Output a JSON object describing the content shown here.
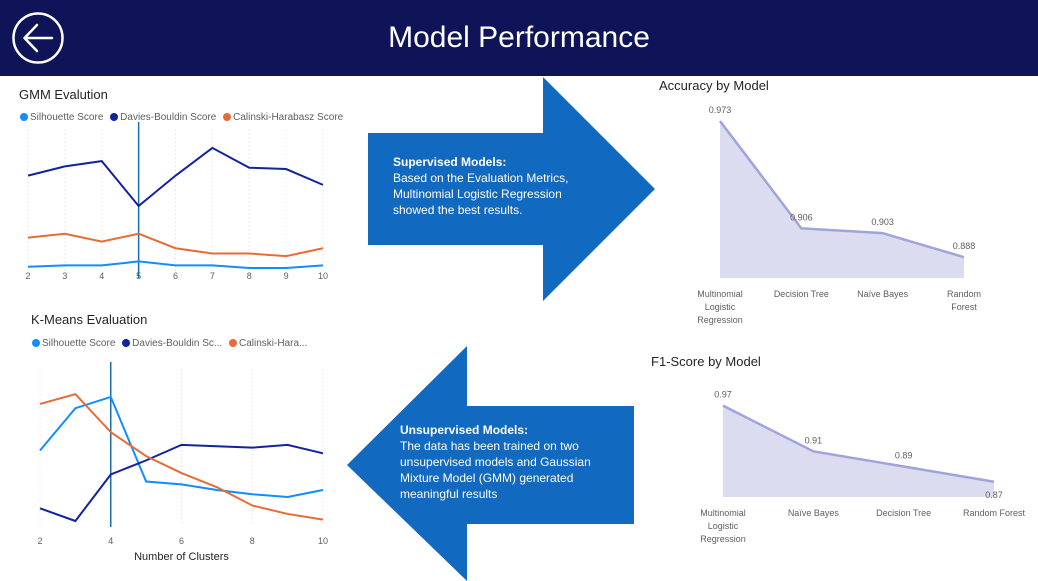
{
  "header": {
    "title": "Model Performance",
    "back_icon": "back-arrow-icon",
    "background": "#0f1458"
  },
  "colors": {
    "silhouette": "#118dff",
    "davies": "#12239e",
    "calinski": "#e66c37",
    "arrow": "#1169c0",
    "area": "#a0a4dc",
    "area_fill": "#dcdcf0"
  },
  "gmm": {
    "title": "GMM Evalution",
    "legend": [
      "Silhouette Score",
      "Davies-Bouldin Score",
      "Calinski-Harabasz Score"
    ]
  },
  "kmeans": {
    "title": "K-Means Evaluation",
    "legend": [
      "Silhouette Score",
      "Davies-Bouldin Sc...",
      "Calinski-Hara..."
    ],
    "xlabel": "Number of Clusters"
  },
  "supervised": {
    "heading": "Supervised Models:",
    "body": "Based on the Evaluation Metrics, Multinomial Logistic Regression showed the best results."
  },
  "unsupervised": {
    "heading": "Unsupervised Models:",
    "body": "The data has been trained on two unsupervised models and Gaussian Mixture Model (GMM) generated meaningful results"
  },
  "accuracy": {
    "title": "Accuracy by Model"
  },
  "f1": {
    "title": "F1-Score by Model"
  },
  "chart_data": [
    {
      "type": "line",
      "title": "GMM Evalution",
      "x": [
        2,
        3,
        4,
        5,
        6,
        7,
        8,
        9,
        10
      ],
      "xticks": [
        "2",
        "3",
        "4",
        "5",
        "6",
        "7",
        "8",
        "9",
        "10"
      ],
      "marker_x": 5,
      "series": [
        {
          "name": "Silhouette Score",
          "values": [
            0.04,
            0.05,
            0.05,
            0.08,
            0.05,
            0.05,
            0.03,
            0.03,
            0.05
          ]
        },
        {
          "name": "Davies-Bouldin Score",
          "values": [
            0.73,
            0.8,
            0.84,
            0.5,
            0.73,
            0.94,
            0.79,
            0.78,
            0.66
          ]
        },
        {
          "name": "Calinski-Harabasz Score",
          "values": [
            0.26,
            0.29,
            0.23,
            0.29,
            0.18,
            0.14,
            0.14,
            0.12,
            0.18
          ]
        }
      ],
      "ylim": [
        0,
        1
      ],
      "grid": true
    },
    {
      "type": "line",
      "title": "K-Means Evaluation",
      "xlabel": "Number of Clusters",
      "x": [
        2,
        3,
        4,
        5,
        6,
        7,
        8,
        9,
        10
      ],
      "xticks": [
        "2",
        "4",
        "6",
        "8",
        "10"
      ],
      "marker_x": 4,
      "series": [
        {
          "name": "Silhouette Score",
          "values": [
            0.5,
            0.8,
            0.88,
            0.28,
            0.26,
            0.22,
            0.19,
            0.17,
            0.22
          ]
        },
        {
          "name": "Davies-Bouldin Score",
          "values": [
            0.09,
            0.0,
            0.33,
            0.43,
            0.54,
            0.53,
            0.52,
            0.54,
            0.48
          ]
        },
        {
          "name": "Calinski-Harabasz Score",
          "values": [
            0.83,
            0.9,
            0.63,
            0.46,
            0.34,
            0.24,
            0.11,
            0.05,
            0.01
          ]
        }
      ],
      "ylim": [
        0,
        1
      ],
      "grid": true
    },
    {
      "type": "area",
      "title": "Accuracy by Model",
      "categories": [
        "Multinomial Logistic Regression",
        "Decision Tree",
        "Naïve Bayes",
        "Random Forest"
      ],
      "category_lines": [
        [
          "Multinomial",
          "Logistic",
          "Regression"
        ],
        [
          "Decision Tree"
        ],
        [
          "Naïve Bayes"
        ],
        [
          "Random",
          "Forest"
        ]
      ],
      "values": [
        0.973,
        0.906,
        0.903,
        0.888
      ],
      "labels": [
        "0.973",
        "0.906",
        "0.903",
        "0.888"
      ],
      "ylim": [
        0.875,
        0.978
      ]
    },
    {
      "type": "area",
      "title": "F1-Score by Model",
      "categories": [
        "Multinomial Logistic Regression",
        "Naïve Bayes",
        "Decision Tree",
        "Random Forest"
      ],
      "category_lines": [
        [
          "Multinomial",
          "Logistic",
          "Regression"
        ],
        [
          "Naïve Bayes"
        ],
        [
          "Decision Tree"
        ],
        [
          "Random Forest"
        ]
      ],
      "values": [
        0.97,
        0.91,
        0.89,
        0.87
      ],
      "labels": [
        "0.97",
        "0.91",
        "0.89",
        "0.87"
      ],
      "ylim": [
        0.85,
        0.98
      ]
    }
  ]
}
